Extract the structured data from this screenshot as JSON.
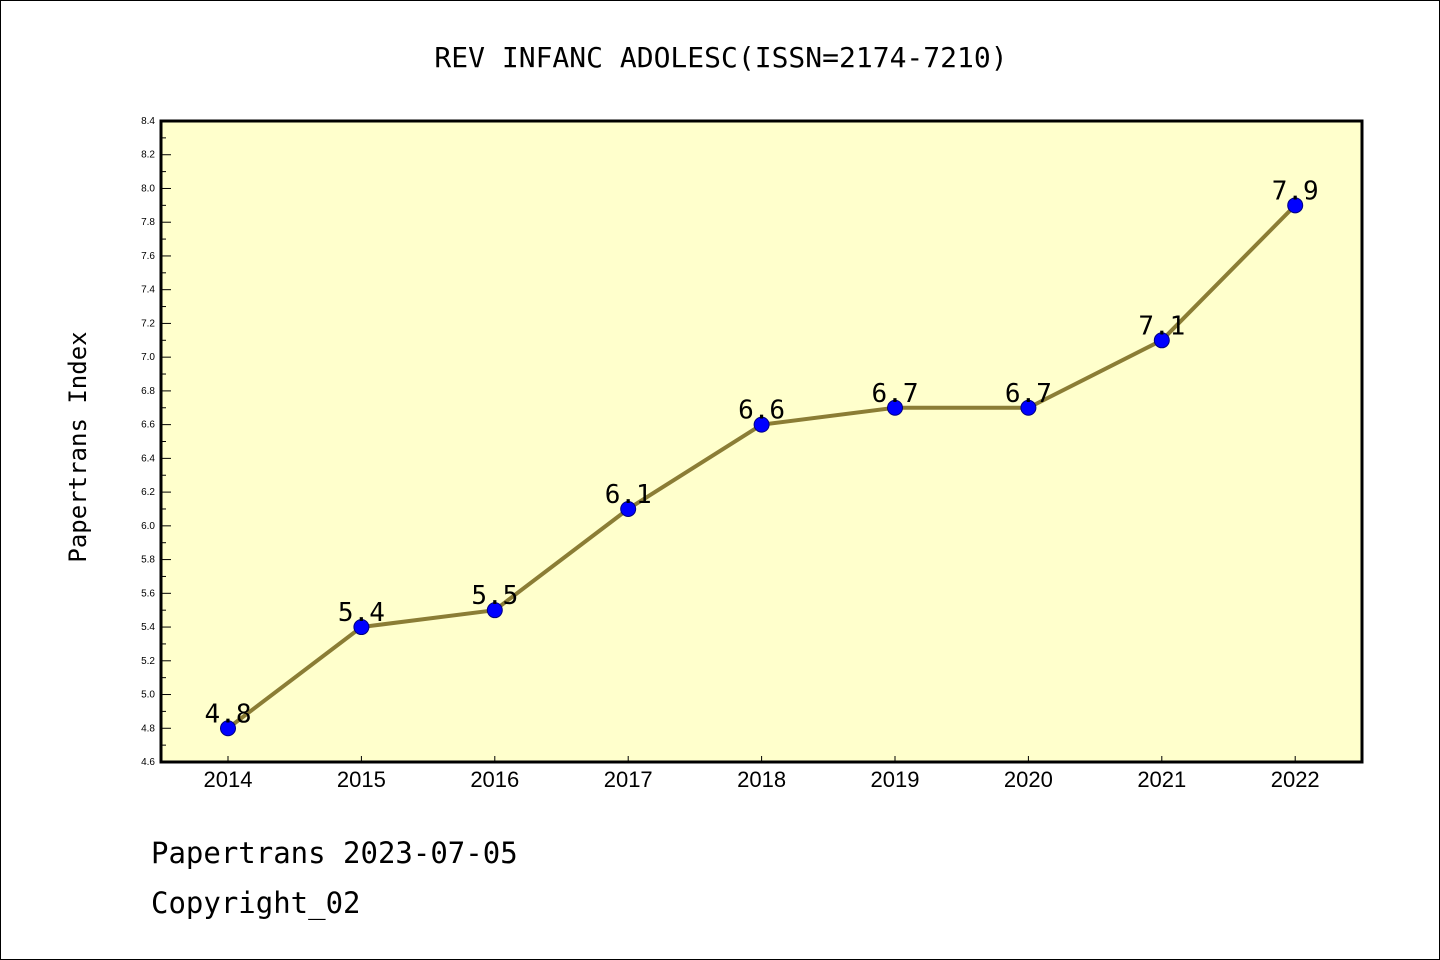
{
  "footer": {
    "line1": "Papertrans 2023-07-05",
    "line2": "Copyright_02"
  },
  "colors": {
    "plot_background": "#ffffcc",
    "line": "#8b7d35",
    "marker": "#0000ff",
    "marker_edge": "#000080",
    "axis": "#000000"
  },
  "chart_data": {
    "type": "line",
    "title": "REV INFANC ADOLESC(ISSN=2174-7210)",
    "xlabel": "",
    "ylabel": "Papertrans Index",
    "categories": [
      "2014",
      "2015",
      "2016",
      "2017",
      "2018",
      "2019",
      "2020",
      "2021",
      "2022"
    ],
    "series": [
      {
        "values": [
          4.8,
          5.4,
          5.5,
          6.1,
          6.6,
          6.7,
          6.7,
          7.1,
          7.9
        ],
        "data_labels": [
          "4.8",
          "5.4",
          "5.5",
          "6.1",
          "6.6",
          "6.7",
          "6.7",
          "7.1",
          "7.9"
        ]
      }
    ],
    "ylim": [
      4.6,
      8.4
    ],
    "yticks": [
      "4.6",
      "4.8",
      "5.0",
      "5.2",
      "5.4",
      "5.6",
      "5.8",
      "6.0",
      "6.2",
      "6.4",
      "6.6",
      "6.8",
      "7.0",
      "7.2",
      "7.4",
      "7.6",
      "7.8",
      "8.0",
      "8.2",
      "8.4"
    ],
    "grid": false,
    "legend": "none"
  }
}
